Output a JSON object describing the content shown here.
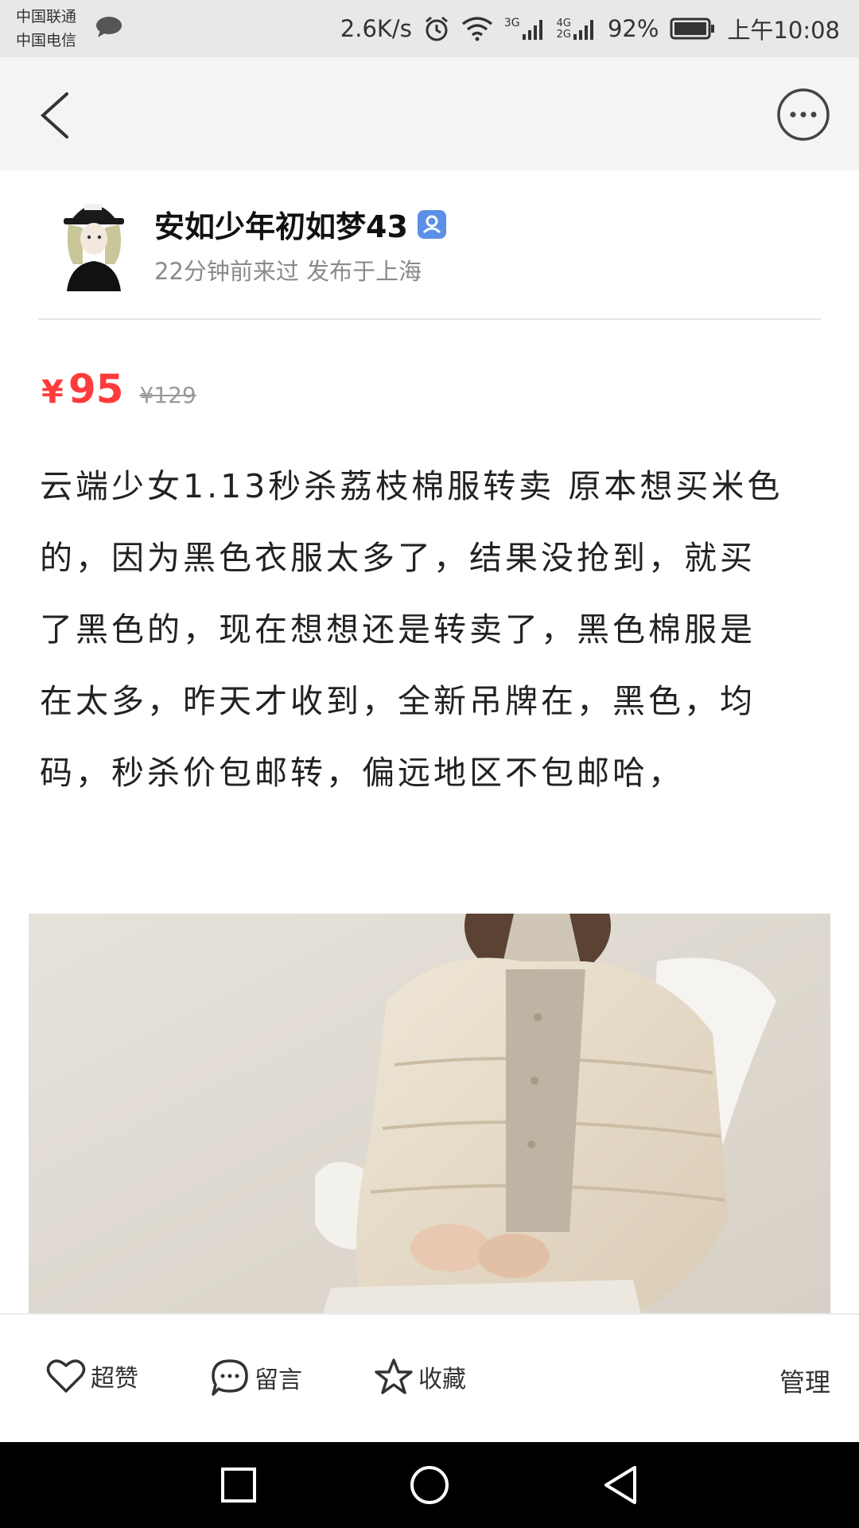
{
  "status_bar": {
    "carrier_1": "中国联通",
    "carrier_2": "中国电信",
    "net_speed": "2.6K/s",
    "signal_1": "3G",
    "signal_2_top": "4G",
    "signal_2_bottom": "2G",
    "battery": "92%",
    "time": "上午10:08"
  },
  "header": {
    "back_icon": "chevron-left-icon",
    "more_icon": "more-dots-icon"
  },
  "user": {
    "name": "安如少年初如梦43",
    "meta": "22分钟前来过 发布于上海"
  },
  "price": {
    "currency": "¥",
    "current": "95",
    "original": "¥129"
  },
  "description": "云端少女1.13秒杀荔枝棉服转卖 原本想买米色的，因为黑色衣服太多了，结果没抢到，就买了黑色的，现在想想还是转卖了，黑色棉服是在太多，昨天才收到，全新吊牌在，黑色，均码，秒杀价包邮转，偏远地区不包邮哈，",
  "actions": {
    "like": "超赞",
    "comment": "留言",
    "favorite": "收藏",
    "manage": "管理"
  },
  "colors": {
    "price": "#ff3b3b",
    "verify_badge": "#5b8fe8"
  }
}
